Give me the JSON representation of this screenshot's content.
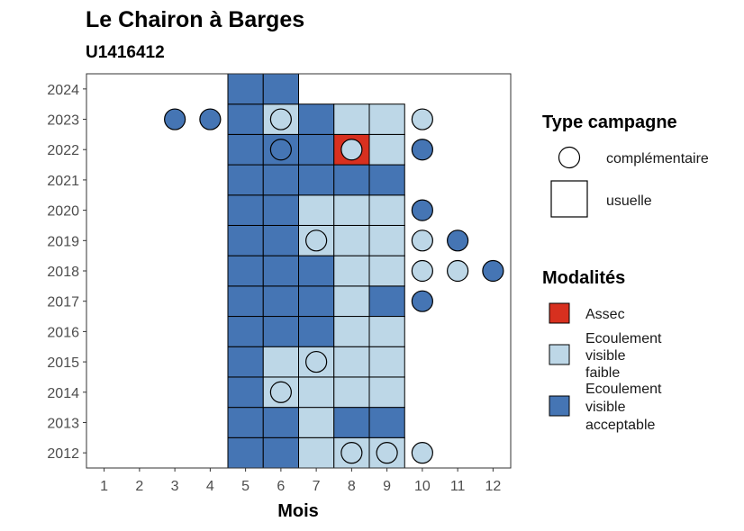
{
  "chart_data": {
    "type": "heatmap",
    "title": "Le Chairon à Barges",
    "subtitle": "U1416412",
    "xlabel": "Mois",
    "ylabel": "",
    "x_ticks": [
      1,
      2,
      3,
      4,
      5,
      6,
      7,
      8,
      9,
      10,
      11,
      12
    ],
    "y_ticks": [
      2012,
      2013,
      2014,
      2015,
      2016,
      2017,
      2018,
      2019,
      2020,
      2021,
      2022,
      2023,
      2024
    ],
    "xlim": [
      0.5,
      12.5
    ],
    "ylim": [
      2011.5,
      2024.5
    ],
    "grid": false,
    "legend_position": "right",
    "colors": {
      "Assec": "#d7301f",
      "Ecoulement visible faible": "#bdd7e7",
      "Ecoulement visible acceptable": "#4575b4"
    },
    "legend": {
      "shape_title": "Type campagne",
      "shapes": [
        {
          "key": "complementaire",
          "label": "complémentaire",
          "shape": "circle"
        },
        {
          "key": "usuelle",
          "label": "usuelle",
          "shape": "square"
        }
      ],
      "fill_title": "Modalités",
      "fills": [
        {
          "key": "Assec",
          "lines": [
            "Assec"
          ]
        },
        {
          "key": "Ecoulement visible faible",
          "lines": [
            "Ecoulement",
            "visible",
            "faible"
          ]
        },
        {
          "key": "Ecoulement visible acceptable",
          "lines": [
            "Ecoulement",
            "visible",
            "acceptable"
          ]
        }
      ]
    },
    "tiles": [
      {
        "year": 2012,
        "month": 5,
        "value": "Ecoulement visible acceptable"
      },
      {
        "year": 2012,
        "month": 6,
        "value": "Ecoulement visible acceptable"
      },
      {
        "year": 2012,
        "month": 7,
        "value": "Ecoulement visible faible"
      },
      {
        "year": 2012,
        "month": 8,
        "value": "Ecoulement visible faible"
      },
      {
        "year": 2012,
        "month": 9,
        "value": "Ecoulement visible faible"
      },
      {
        "year": 2013,
        "month": 5,
        "value": "Ecoulement visible acceptable"
      },
      {
        "year": 2013,
        "month": 6,
        "value": "Ecoulement visible acceptable"
      },
      {
        "year": 2013,
        "month": 7,
        "value": "Ecoulement visible faible"
      },
      {
        "year": 2013,
        "month": 8,
        "value": "Ecoulement visible acceptable"
      },
      {
        "year": 2013,
        "month": 9,
        "value": "Ecoulement visible acceptable"
      },
      {
        "year": 2014,
        "month": 5,
        "value": "Ecoulement visible acceptable"
      },
      {
        "year": 2014,
        "month": 6,
        "value": "Ecoulement visible faible"
      },
      {
        "year": 2014,
        "month": 7,
        "value": "Ecoulement visible faible"
      },
      {
        "year": 2014,
        "month": 8,
        "value": "Ecoulement visible faible"
      },
      {
        "year": 2014,
        "month": 9,
        "value": "Ecoulement visible faible"
      },
      {
        "year": 2015,
        "month": 5,
        "value": "Ecoulement visible acceptable"
      },
      {
        "year": 2015,
        "month": 6,
        "value": "Ecoulement visible faible"
      },
      {
        "year": 2015,
        "month": 7,
        "value": "Ecoulement visible faible"
      },
      {
        "year": 2015,
        "month": 8,
        "value": "Ecoulement visible faible"
      },
      {
        "year": 2015,
        "month": 9,
        "value": "Ecoulement visible faible"
      },
      {
        "year": 2016,
        "month": 5,
        "value": "Ecoulement visible acceptable"
      },
      {
        "year": 2016,
        "month": 6,
        "value": "Ecoulement visible acceptable"
      },
      {
        "year": 2016,
        "month": 7,
        "value": "Ecoulement visible acceptable"
      },
      {
        "year": 2016,
        "month": 8,
        "value": "Ecoulement visible faible"
      },
      {
        "year": 2016,
        "month": 9,
        "value": "Ecoulement visible faible"
      },
      {
        "year": 2017,
        "month": 5,
        "value": "Ecoulement visible acceptable"
      },
      {
        "year": 2017,
        "month": 6,
        "value": "Ecoulement visible acceptable"
      },
      {
        "year": 2017,
        "month": 7,
        "value": "Ecoulement visible acceptable"
      },
      {
        "year": 2017,
        "month": 8,
        "value": "Ecoulement visible faible"
      },
      {
        "year": 2017,
        "month": 9,
        "value": "Ecoulement visible acceptable"
      },
      {
        "year": 2018,
        "month": 5,
        "value": "Ecoulement visible acceptable"
      },
      {
        "year": 2018,
        "month": 6,
        "value": "Ecoulement visible acceptable"
      },
      {
        "year": 2018,
        "month": 7,
        "value": "Ecoulement visible acceptable"
      },
      {
        "year": 2018,
        "month": 8,
        "value": "Ecoulement visible faible"
      },
      {
        "year": 2018,
        "month": 9,
        "value": "Ecoulement visible faible"
      },
      {
        "year": 2019,
        "month": 5,
        "value": "Ecoulement visible acceptable"
      },
      {
        "year": 2019,
        "month": 6,
        "value": "Ecoulement visible acceptable"
      },
      {
        "year": 2019,
        "month": 7,
        "value": "Ecoulement visible faible"
      },
      {
        "year": 2019,
        "month": 8,
        "value": "Ecoulement visible faible"
      },
      {
        "year": 2019,
        "month": 9,
        "value": "Ecoulement visible faible"
      },
      {
        "year": 2020,
        "month": 5,
        "value": "Ecoulement visible acceptable"
      },
      {
        "year": 2020,
        "month": 6,
        "value": "Ecoulement visible acceptable"
      },
      {
        "year": 2020,
        "month": 7,
        "value": "Ecoulement visible faible"
      },
      {
        "year": 2020,
        "month": 8,
        "value": "Ecoulement visible faible"
      },
      {
        "year": 2020,
        "month": 9,
        "value": "Ecoulement visible faible"
      },
      {
        "year": 2021,
        "month": 5,
        "value": "Ecoulement visible acceptable"
      },
      {
        "year": 2021,
        "month": 6,
        "value": "Ecoulement visible acceptable"
      },
      {
        "year": 2021,
        "month": 7,
        "value": "Ecoulement visible acceptable"
      },
      {
        "year": 2021,
        "month": 8,
        "value": "Ecoulement visible acceptable"
      },
      {
        "year": 2021,
        "month": 9,
        "value": "Ecoulement visible acceptable"
      },
      {
        "year": 2022,
        "month": 5,
        "value": "Ecoulement visible acceptable"
      },
      {
        "year": 2022,
        "month": 6,
        "value": "Ecoulement visible acceptable"
      },
      {
        "year": 2022,
        "month": 7,
        "value": "Ecoulement visible acceptable"
      },
      {
        "year": 2022,
        "month": 8,
        "value": "Assec"
      },
      {
        "year": 2022,
        "month": 9,
        "value": "Ecoulement visible faible"
      },
      {
        "year": 2023,
        "month": 5,
        "value": "Ecoulement visible acceptable"
      },
      {
        "year": 2023,
        "month": 6,
        "value": "Ecoulement visible faible"
      },
      {
        "year": 2023,
        "month": 7,
        "value": "Ecoulement visible acceptable"
      },
      {
        "year": 2023,
        "month": 8,
        "value": "Ecoulement visible faible"
      },
      {
        "year": 2023,
        "month": 9,
        "value": "Ecoulement visible faible"
      },
      {
        "year": 2024,
        "month": 5,
        "value": "Ecoulement visible acceptable"
      },
      {
        "year": 2024,
        "month": 6,
        "value": "Ecoulement visible acceptable"
      }
    ],
    "points": [
      {
        "year": 2012,
        "month": 8,
        "value": "Ecoulement visible faible"
      },
      {
        "year": 2012,
        "month": 9,
        "value": "Ecoulement visible faible"
      },
      {
        "year": 2012,
        "month": 10,
        "value": "Ecoulement visible faible"
      },
      {
        "year": 2014,
        "month": 6,
        "value": "Ecoulement visible faible"
      },
      {
        "year": 2015,
        "month": 7,
        "value": "Ecoulement visible faible"
      },
      {
        "year": 2017,
        "month": 10,
        "value": "Ecoulement visible acceptable"
      },
      {
        "year": 2018,
        "month": 10,
        "value": "Ecoulement visible faible"
      },
      {
        "year": 2018,
        "month": 11,
        "value": "Ecoulement visible faible"
      },
      {
        "year": 2018,
        "month": 12,
        "value": "Ecoulement visible acceptable"
      },
      {
        "year": 2019,
        "month": 7,
        "value": "Ecoulement visible faible"
      },
      {
        "year": 2019,
        "month": 10,
        "value": "Ecoulement visible faible"
      },
      {
        "year": 2019,
        "month": 11,
        "value": "Ecoulement visible acceptable"
      },
      {
        "year": 2020,
        "month": 10,
        "value": "Ecoulement visible acceptable"
      },
      {
        "year": 2022,
        "month": 6,
        "value": "Ecoulement visible acceptable"
      },
      {
        "year": 2022,
        "month": 8,
        "value": "Ecoulement visible faible"
      },
      {
        "year": 2022,
        "month": 10,
        "value": "Ecoulement visible acceptable"
      },
      {
        "year": 2023,
        "month": 3,
        "value": "Ecoulement visible acceptable"
      },
      {
        "year": 2023,
        "month": 4,
        "value": "Ecoulement visible acceptable"
      },
      {
        "year": 2023,
        "month": 6,
        "value": "Ecoulement visible faible"
      },
      {
        "year": 2023,
        "month": 10,
        "value": "Ecoulement visible faible"
      }
    ]
  }
}
